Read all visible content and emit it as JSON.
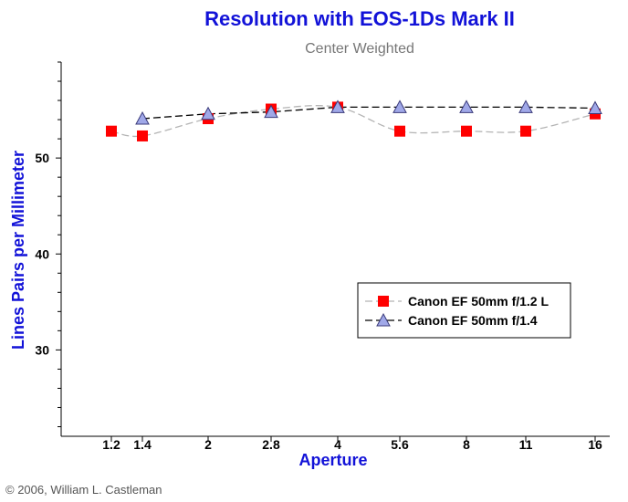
{
  "chart_data": {
    "type": "line",
    "title": "Resolution with EOS-1Ds Mark II",
    "subtitle": "Center Weighted",
    "xlabel": "Aperture",
    "ylabel": "Lines Pairs per Millimeter",
    "x_tick_labels": [
      "1.2",
      "1.4",
      "2",
      "2.8",
      "4",
      "5.6",
      "8",
      "11",
      "16"
    ],
    "y_ticks": [
      30,
      40,
      50
    ],
    "ylim": [
      21,
      60
    ],
    "grid": false,
    "legend_position": "lower-right",
    "series": [
      {
        "name": "Canon EF 50mm f/1.2 L",
        "marker": "square",
        "color": "#ff0000",
        "line_color": "#b4b4b4",
        "line_style": "dashed-smooth",
        "x": [
          "1.2",
          "1.4",
          "2",
          "2.8",
          "4",
          "5.6",
          "8",
          "11",
          "16"
        ],
        "values": [
          52.8,
          52.3,
          54.1,
          55.1,
          55.3,
          52.8,
          52.8,
          52.8,
          54.6
        ]
      },
      {
        "name": "Canon EF 50mm f/1.4",
        "marker": "triangle",
        "color": "#a0a8e8",
        "line_color": "#000000",
        "line_style": "dashed",
        "x": [
          "1.4",
          "2",
          "2.8",
          "4",
          "5.6",
          "8",
          "11",
          "16"
        ],
        "values": [
          54.1,
          54.6,
          54.8,
          55.3,
          55.3,
          55.3,
          55.3,
          55.2
        ]
      }
    ]
  },
  "copyright": "© 2006, William L. Castleman"
}
